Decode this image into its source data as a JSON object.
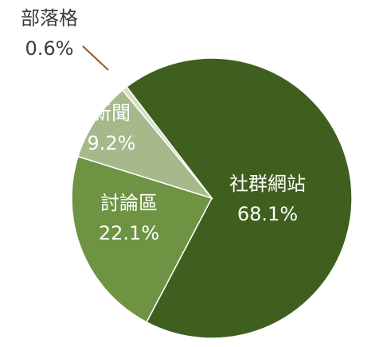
{
  "chart_data": {
    "type": "pie",
    "categories": [
      "社群網站",
      "討論區",
      "新聞",
      "部落格"
    ],
    "values": [
      68.1,
      22.1,
      9.2,
      0.6
    ],
    "value_labels": [
      "68.1%",
      "22.1%",
      "9.2%",
      "0.6%"
    ],
    "colors": [
      "#3f5f1e",
      "#6e9342",
      "#a5b98b",
      "#d5dec6"
    ]
  }
}
